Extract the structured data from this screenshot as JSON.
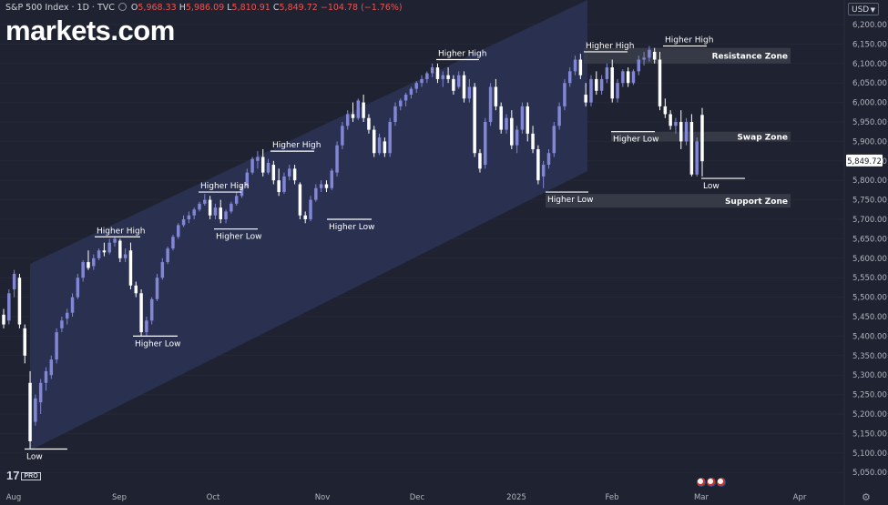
{
  "header": {
    "title": "S&P 500 Index · 1D · TVC",
    "open_label": "O",
    "open": "5,968.33",
    "high_label": "H",
    "high": "5,986.09",
    "low_label": "L",
    "low": "5,810.91",
    "close_label": "C",
    "close": "5,849.72",
    "change": "−104.78 (−1.76%)"
  },
  "brand": "markets.com",
  "currency": "USD",
  "tv_logo": "17",
  "tv_pro": "PRO",
  "colors": {
    "background": "#1f2331",
    "bull": "#8286d6",
    "bear": "#ffffff",
    "channel": "#2a3252",
    "zone": "#3a3e4a",
    "text": "#d1d4dc",
    "accent_red": "#ef5350"
  },
  "chart_data": {
    "type": "candlestick",
    "title": "S&P 500 Index · 1D · TVC",
    "ylim": [
      5030,
      6260
    ],
    "y_ticks": [
      "6,200.00",
      "6,150.00",
      "6,100.00",
      "6,050.00",
      "6,000.00",
      "5,950.00",
      "5,900.00",
      "5,850.00",
      "5,800.00",
      "5,750.00",
      "5,700.00",
      "5,650.00",
      "5,600.00",
      "5,550.00",
      "5,500.00",
      "5,450.00",
      "5,400.00",
      "5,350.00",
      "5,300.00",
      "5,250.00",
      "5,200.00",
      "5,150.00",
      "5,100.00",
      "5,050.00"
    ],
    "x_ticks": [
      "Aug",
      "Sep",
      "Oct",
      "Nov",
      "Dec",
      "2025",
      "Feb",
      "Mar",
      "Apr"
    ],
    "last_price": "5,849.72",
    "trend_channel": {
      "from": "Aug",
      "to": "Jan"
    },
    "zones": [
      {
        "label": "Resistance Zone",
        "low": 6100,
        "high": 6140
      },
      {
        "label": "Swap Zone",
        "low": 5900,
        "high": 5925
      },
      {
        "label": "Support Zone",
        "low": 5730,
        "high": 5765
      }
    ],
    "annotations": [
      {
        "text": "Low",
        "value": 5110
      },
      {
        "text": "Higher High",
        "value": 5655
      },
      {
        "text": "Higher Low",
        "value": 5400
      },
      {
        "text": "Higher High",
        "value": 5770
      },
      {
        "text": "Higher Low",
        "value": 5675
      },
      {
        "text": "Higher High",
        "value": 5875
      },
      {
        "text": "Higher Low",
        "value": 5700
      },
      {
        "text": "Higher High",
        "value": 6110
      },
      {
        "text": "Higher Low",
        "value": 5770
      },
      {
        "text": "Higher High",
        "value": 6130
      },
      {
        "text": "Higher Low",
        "value": 5925
      },
      {
        "text": "Higher High",
        "value": 6145
      },
      {
        "text": "Low",
        "value": 5805
      }
    ],
    "candles": [
      [
        5455,
        5470,
        5420,
        5430
      ],
      [
        5440,
        5520,
        5430,
        5510
      ],
      [
        5520,
        5570,
        5500,
        5560
      ],
      [
        5550,
        5560,
        5420,
        5430
      ],
      [
        5420,
        5430,
        5330,
        5350
      ],
      [
        5280,
        5310,
        5110,
        5130
      ],
      [
        5180,
        5250,
        5170,
        5240
      ],
      [
        5230,
        5290,
        5200,
        5280
      ],
      [
        5280,
        5320,
        5260,
        5310
      ],
      [
        5300,
        5350,
        5290,
        5340
      ],
      [
        5340,
        5420,
        5330,
        5410
      ],
      [
        5420,
        5450,
        5410,
        5440
      ],
      [
        5445,
        5470,
        5430,
        5460
      ],
      [
        5460,
        5510,
        5450,
        5500
      ],
      [
        5500,
        5560,
        5495,
        5550
      ],
      [
        5550,
        5595,
        5540,
        5590
      ],
      [
        5590,
        5620,
        5570,
        5575
      ],
      [
        5580,
        5610,
        5570,
        5600
      ],
      [
        5600,
        5625,
        5595,
        5620
      ],
      [
        5620,
        5640,
        5605,
        5615
      ],
      [
        5615,
        5650,
        5610,
        5640
      ],
      [
        5640,
        5655,
        5630,
        5650
      ],
      [
        5645,
        5650,
        5590,
        5600
      ],
      [
        5600,
        5625,
        5590,
        5610
      ],
      [
        5620,
        5640,
        5520,
        5530
      ],
      [
        5530,
        5540,
        5500,
        5510
      ],
      [
        5510,
        5520,
        5400,
        5410
      ],
      [
        5410,
        5450,
        5400,
        5440
      ],
      [
        5440,
        5500,
        5430,
        5495
      ],
      [
        5495,
        5560,
        5490,
        5550
      ],
      [
        5550,
        5600,
        5545,
        5590
      ],
      [
        5590,
        5630,
        5585,
        5625
      ],
      [
        5625,
        5660,
        5620,
        5655
      ],
      [
        5655,
        5690,
        5650,
        5685
      ],
      [
        5685,
        5710,
        5680,
        5700
      ],
      [
        5700,
        5720,
        5690,
        5710
      ],
      [
        5710,
        5730,
        5700,
        5725
      ],
      [
        5725,
        5745,
        5720,
        5740
      ],
      [
        5740,
        5765,
        5735,
        5750
      ],
      [
        5750,
        5760,
        5700,
        5710
      ],
      [
        5710,
        5740,
        5700,
        5730
      ],
      [
        5730,
        5750,
        5690,
        5700
      ],
      [
        5700,
        5725,
        5690,
        5720
      ],
      [
        5720,
        5745,
        5715,
        5740
      ],
      [
        5740,
        5770,
        5735,
        5760
      ],
      [
        5760,
        5790,
        5755,
        5785
      ],
      [
        5785,
        5830,
        5780,
        5820
      ],
      [
        5820,
        5860,
        5815,
        5855
      ],
      [
        5850,
        5875,
        5830,
        5860
      ],
      [
        5860,
        5880,
        5810,
        5820
      ],
      [
        5820,
        5855,
        5815,
        5845
      ],
      [
        5840,
        5850,
        5790,
        5800
      ],
      [
        5800,
        5830,
        5760,
        5770
      ],
      [
        5770,
        5820,
        5765,
        5810
      ],
      [
        5810,
        5840,
        5800,
        5830
      ],
      [
        5830,
        5840,
        5790,
        5800
      ],
      [
        5790,
        5795,
        5700,
        5710
      ],
      [
        5710,
        5720,
        5690,
        5700
      ],
      [
        5700,
        5760,
        5695,
        5750
      ],
      [
        5750,
        5790,
        5745,
        5780
      ],
      [
        5780,
        5800,
        5770,
        5790
      ],
      [
        5790,
        5800,
        5770,
        5780
      ],
      [
        5780,
        5830,
        5775,
        5825
      ],
      [
        5820,
        5900,
        5810,
        5890
      ],
      [
        5890,
        5950,
        5880,
        5940
      ],
      [
        5940,
        5980,
        5930,
        5970
      ],
      [
        5970,
        6000,
        5950,
        5960
      ],
      [
        5960,
        6010,
        5955,
        6005
      ],
      [
        6000,
        6020,
        5950,
        5960
      ],
      [
        5960,
        5970,
        5920,
        5930
      ],
      [
        5930,
        5940,
        5860,
        5870
      ],
      [
        5870,
        5920,
        5865,
        5910
      ],
      [
        5900,
        5910,
        5860,
        5870
      ],
      [
        5870,
        5960,
        5860,
        5950
      ],
      [
        5950,
        6000,
        5940,
        5990
      ],
      [
        5990,
        6010,
        5980,
        6005
      ],
      [
        6005,
        6025,
        5990,
        6020
      ],
      [
        6020,
        6040,
        6010,
        6035
      ],
      [
        6035,
        6055,
        6025,
        6050
      ],
      [
        6050,
        6070,
        6040,
        6060
      ],
      [
        6060,
        6080,
        6050,
        6075
      ],
      [
        6075,
        6100,
        6065,
        6090
      ],
      [
        6090,
        6100,
        6050,
        6060
      ],
      [
        6060,
        6080,
        6040,
        6070
      ],
      [
        6070,
        6090,
        6050,
        6060
      ],
      [
        6060,
        6070,
        6020,
        6030
      ],
      [
        6040,
        6080,
        6035,
        6070
      ],
      [
        6070,
        6080,
        6000,
        6010
      ],
      [
        6010,
        6060,
        6000,
        6040
      ],
      [
        6040,
        6050,
        5860,
        5870
      ],
      [
        5870,
        5880,
        5820,
        5830
      ],
      [
        5840,
        5960,
        5830,
        5950
      ],
      [
        5950,
        6050,
        5940,
        6040
      ],
      [
        6040,
        6060,
        5980,
        5990
      ],
      [
        5990,
        6000,
        5920,
        5930
      ],
      [
        5930,
        5970,
        5920,
        5960
      ],
      [
        5960,
        5980,
        5880,
        5890
      ],
      [
        5890,
        5940,
        5870,
        5930
      ],
      [
        5930,
        6000,
        5920,
        5990
      ],
      [
        5990,
        6000,
        5900,
        5920
      ],
      [
        5920,
        5940,
        5870,
        5880
      ],
      [
        5880,
        5890,
        5790,
        5800
      ],
      [
        5810,
        5850,
        5780,
        5840
      ],
      [
        5840,
        5880,
        5830,
        5870
      ],
      [
        5870,
        5950,
        5860,
        5940
      ],
      [
        5940,
        6000,
        5930,
        5990
      ],
      [
        5990,
        6060,
        5980,
        6050
      ],
      [
        6050,
        6090,
        6040,
        6080
      ],
      [
        6080,
        6120,
        6070,
        6110
      ],
      [
        6110,
        6125,
        6060,
        6070
      ],
      [
        6020,
        6050,
        5990,
        6000
      ],
      [
        6000,
        6070,
        5990,
        6060
      ],
      [
        6060,
        6080,
        6020,
        6030
      ],
      [
        6030,
        6070,
        6020,
        6060
      ],
      [
        6060,
        6100,
        6050,
        6090
      ],
      [
        6090,
        6110,
        6000,
        6010
      ],
      [
        6010,
        6060,
        6000,
        6050
      ],
      [
        6050,
        6085,
        6040,
        6080
      ],
      [
        6080,
        6090,
        6040,
        6050
      ],
      [
        6050,
        6085,
        6045,
        6080
      ],
      [
        6080,
        6120,
        6070,
        6110
      ],
      [
        6110,
        6130,
        6095,
        6115
      ],
      [
        6115,
        6145,
        6105,
        6135
      ],
      [
        6130,
        6140,
        6100,
        6110
      ],
      [
        6110,
        6130,
        5980,
        5990
      ],
      [
        5990,
        6010,
        5960,
        5970
      ],
      [
        5970,
        5980,
        5930,
        5940
      ],
      [
        5940,
        5960,
        5920,
        5950
      ],
      [
        5950,
        5980,
        5880,
        5900
      ],
      [
        5900,
        5960,
        5890,
        5950
      ],
      [
        5950,
        5970,
        5810,
        5815
      ],
      [
        5815,
        5910,
        5810,
        5900
      ],
      [
        5968,
        5986,
        5810,
        5849
      ]
    ]
  }
}
